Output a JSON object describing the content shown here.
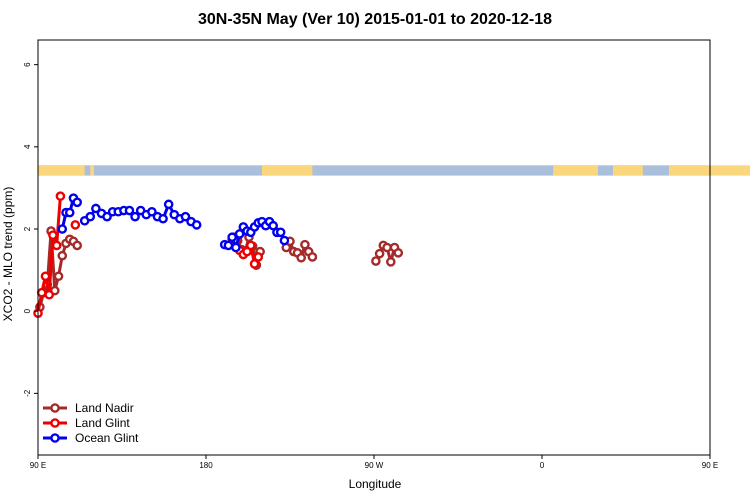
{
  "chart_data": {
    "type": "line",
    "title": "30N-35N May (Ver 10)   2015-01-01 to 2020-12-18",
    "xlabel": "Longitude",
    "ylabel": "XCO2 - MLO trend (ppm)",
    "xlim": [
      90,
      450
    ],
    "ylim": [
      -3.5,
      6.6
    ],
    "x_ticks": [
      {
        "value": 90,
        "label": "90 E"
      },
      {
        "value": 180,
        "label": "180"
      },
      {
        "value": 270,
        "label": "90 W"
      },
      {
        "value": 360,
        "label": "0"
      },
      {
        "value": 450,
        "label": "90 E"
      },
      {
        "value": 540,
        "label": "180"
      }
    ],
    "y_ticks": [
      {
        "value": -2,
        "label": "-2"
      },
      {
        "value": 0,
        "label": "0"
      },
      {
        "value": 2,
        "label": "2"
      },
      {
        "value": 4,
        "label": "4"
      },
      {
        "value": 6,
        "label": "6"
      }
    ],
    "land_band": {
      "y_range": [
        3.3,
        3.55
      ],
      "ocean_color": "#a9bfdc",
      "land_color": "#fad67c",
      "land_segments": [
        [
          90,
          115
        ],
        [
          118,
          120
        ],
        [
          210,
          237
        ],
        [
          366,
          390
        ],
        [
          398,
          414
        ],
        [
          428,
          494
        ]
      ]
    },
    "legend": {
      "position": "bottom-left"
    },
    "series": [
      {
        "name": "Land Nadir",
        "color": "#a52a2a",
        "segments": [
          [
            [
              91,
              0.1
            ],
            [
              93,
              0.45
            ],
            [
              95,
              0.65
            ],
            [
              97,
              1.95
            ],
            [
              99,
              0.5
            ],
            [
              101,
              0.85
            ],
            [
              103,
              1.35
            ],
            [
              105,
              1.65
            ],
            [
              107,
              1.75
            ],
            [
              109,
              1.7
            ],
            [
              111,
              1.6
            ]
          ],
          [
            [
              195,
              1.8
            ],
            [
              197,
              1.72
            ],
            [
              199,
              1.5
            ],
            [
              201,
              1.45
            ],
            [
              203,
              1.8
            ],
            [
              205,
              1.58
            ],
            [
              207,
              1.12
            ],
            [
              209,
              1.45
            ]
          ],
          [
            [
              223,
              1.55
            ],
            [
              225,
              1.7
            ],
            [
              227,
              1.45
            ],
            [
              229,
              1.42
            ],
            [
              231,
              1.3
            ],
            [
              233,
              1.62
            ],
            [
              235,
              1.45
            ],
            [
              237,
              1.32
            ]
          ],
          [
            [
              271,
              1.22
            ],
            [
              273,
              1.4
            ],
            [
              275,
              1.6
            ],
            [
              277,
              1.55
            ],
            [
              279,
              1.2
            ],
            [
              281,
              1.55
            ],
            [
              283,
              1.42
            ]
          ]
        ]
      },
      {
        "name": "Land Glint",
        "color": "#ee0000",
        "segments": [
          [
            [
              90,
              -0.05
            ],
            [
              92,
              0.45
            ],
            [
              94,
              0.85
            ],
            [
              96,
              0.4
            ],
            [
              98,
              1.85
            ],
            [
              100,
              1.6
            ],
            [
              102,
              2.8
            ]
          ],
          [
            [
              110,
              2.1
            ]
          ],
          [
            [
              194,
              1.75
            ],
            [
              196,
              1.7
            ],
            [
              198,
              1.48
            ],
            [
              200,
              1.38
            ],
            [
              202,
              1.45
            ],
            [
              204,
              1.6
            ],
            [
              206,
              1.15
            ],
            [
              208,
              1.32
            ]
          ]
        ]
      },
      {
        "name": "Ocean Glint",
        "color": "#0000ee",
        "segments": [
          [
            [
              103,
              2.0
            ],
            [
              105,
              2.4
            ],
            [
              107,
              2.4
            ],
            [
              109,
              2.75
            ],
            [
              111,
              2.65
            ]
          ],
          [
            [
              115,
              2.2
            ],
            [
              118,
              2.3
            ],
            [
              121,
              2.5
            ],
            [
              124,
              2.38
            ],
            [
              127,
              2.3
            ],
            [
              130,
              2.42
            ],
            [
              133,
              2.42
            ],
            [
              136,
              2.45
            ],
            [
              139,
              2.45
            ],
            [
              142,
              2.3
            ],
            [
              145,
              2.45
            ],
            [
              148,
              2.35
            ],
            [
              151,
              2.42
            ],
            [
              154,
              2.3
            ],
            [
              157,
              2.25
            ],
            [
              160,
              2.6
            ],
            [
              163,
              2.35
            ],
            [
              166,
              2.25
            ],
            [
              169,
              2.3
            ],
            [
              172,
              2.18
            ],
            [
              175,
              2.1
            ]
          ],
          [
            [
              190,
              1.62
            ],
            [
              192,
              1.6
            ],
            [
              194,
              1.8
            ],
            [
              196,
              1.55
            ],
            [
              198,
              1.88
            ],
            [
              200,
              2.05
            ],
            [
              202,
              1.95
            ],
            [
              204,
              1.92
            ],
            [
              206,
              2.05
            ],
            [
              208,
              2.15
            ],
            [
              210,
              2.18
            ],
            [
              212,
              2.08
            ],
            [
              214,
              2.18
            ],
            [
              216,
              2.08
            ],
            [
              218,
              1.92
            ],
            [
              220,
              1.92
            ],
            [
              222,
              1.72
            ]
          ]
        ]
      }
    ]
  }
}
